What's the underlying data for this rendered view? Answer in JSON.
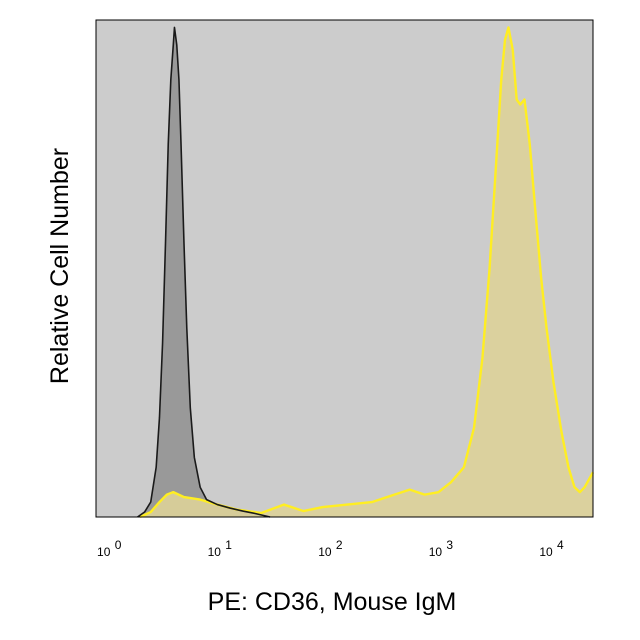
{
  "chart_data": {
    "type": "area",
    "title": "",
    "xlabel": "PE: CD36, Mouse IgM",
    "ylabel": "Relative Cell Number",
    "xscale": "log",
    "xlim": [
      0.8,
      25000
    ],
    "ylim": [
      0,
      1.0
    ],
    "grid": false,
    "legend": "none",
    "plot_background": "#cccccc",
    "x_ticks": [
      {
        "base": "10",
        "exp": "0",
        "value": 1
      },
      {
        "base": "10",
        "exp": "1",
        "value": 10
      },
      {
        "base": "10",
        "exp": "2",
        "value": 100
      },
      {
        "base": "10",
        "exp": "3",
        "value": 1000
      },
      {
        "base": "10",
        "exp": "4",
        "value": 10000
      }
    ],
    "series": [
      {
        "fill": "#999999",
        "stroke": "#1a1a1a",
        "points": [
          [
            1.9,
            0.0
          ],
          [
            2.2,
            0.01
          ],
          [
            2.5,
            0.03
          ],
          [
            2.8,
            0.1
          ],
          [
            3.0,
            0.2
          ],
          [
            3.2,
            0.35
          ],
          [
            3.4,
            0.55
          ],
          [
            3.6,
            0.75
          ],
          [
            3.8,
            0.88
          ],
          [
            4.0,
            0.95
          ],
          [
            4.1,
            0.985
          ],
          [
            4.3,
            0.95
          ],
          [
            4.5,
            0.88
          ],
          [
            4.7,
            0.75
          ],
          [
            5.0,
            0.55
          ],
          [
            5.3,
            0.38
          ],
          [
            5.7,
            0.22
          ],
          [
            6.2,
            0.12
          ],
          [
            7.0,
            0.06
          ],
          [
            8.0,
            0.035
          ],
          [
            10.0,
            0.025
          ],
          [
            13.0,
            0.018
          ],
          [
            17.0,
            0.012
          ],
          [
            22.0,
            0.007
          ],
          [
            30.0,
            0.0
          ]
        ]
      },
      {
        "fill": "#ddd199",
        "stroke": "#ffee22",
        "points": [
          [
            2.0,
            0.0
          ],
          [
            2.5,
            0.01
          ],
          [
            3.0,
            0.03
          ],
          [
            3.5,
            0.045
          ],
          [
            4.0,
            0.05
          ],
          [
            5.0,
            0.04
          ],
          [
            7.0,
            0.035
          ],
          [
            10.0,
            0.025
          ],
          [
            15.0,
            0.015
          ],
          [
            25.0,
            0.008
          ],
          [
            40.0,
            0.025
          ],
          [
            60.0,
            0.012
          ],
          [
            90.0,
            0.02
          ],
          [
            150.0,
            0.025
          ],
          [
            250.0,
            0.03
          ],
          [
            400.0,
            0.045
          ],
          [
            550.0,
            0.055
          ],
          [
            750.0,
            0.045
          ],
          [
            1000.0,
            0.05
          ],
          [
            1300.0,
            0.07
          ],
          [
            1700.0,
            0.1
          ],
          [
            2100.0,
            0.18
          ],
          [
            2500.0,
            0.32
          ],
          [
            2900.0,
            0.5
          ],
          [
            3300.0,
            0.7
          ],
          [
            3700.0,
            0.88
          ],
          [
            4000.0,
            0.96
          ],
          [
            4300.0,
            0.985
          ],
          [
            4700.0,
            0.94
          ],
          [
            5100.0,
            0.84
          ],
          [
            5500.0,
            0.83
          ],
          [
            6000.0,
            0.84
          ],
          [
            6700.0,
            0.75
          ],
          [
            7500.0,
            0.62
          ],
          [
            8500.0,
            0.48
          ],
          [
            9500.0,
            0.38
          ],
          [
            11000.0,
            0.27
          ],
          [
            13000.0,
            0.17
          ],
          [
            15000.0,
            0.1
          ],
          [
            17000.0,
            0.06
          ],
          [
            19000.0,
            0.05
          ],
          [
            21000.0,
            0.06
          ],
          [
            25000.0,
            0.09
          ]
        ]
      }
    ]
  }
}
